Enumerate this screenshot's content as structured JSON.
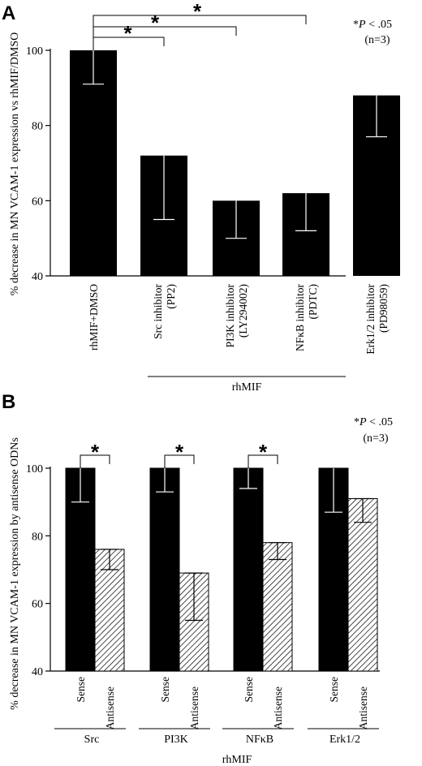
{
  "figure": {
    "colors": {
      "bar": "#000000",
      "hatch": "#000000",
      "background": "#ffffff"
    }
  },
  "chart_data": [
    {
      "type": "bar",
      "panel_label": "A",
      "ylabel": "% decrease in MN VCAM-1 expression vs rhMIF/DMSO",
      "ylim": [
        40,
        100
      ],
      "yticks": [
        "40",
        "60",
        "80",
        "100"
      ],
      "categories": [
        [
          "rhMIF+DMSO"
        ],
        [
          "Src inhibitor",
          "(PP2)"
        ],
        [
          "PI3K inhibitor",
          "(LY294002)"
        ],
        [
          "NFκB inhibitor",
          "(PDTC)"
        ],
        [
          "Erk1/2 inhibitor",
          "(PD98059)"
        ]
      ],
      "values": [
        100,
        72,
        60,
        62,
        88
      ],
      "error_low": [
        91,
        55,
        50,
        52,
        77
      ],
      "group_label": "rhMIF",
      "significance": {
        "marker": "*",
        "comparisons": [
          [
            0,
            1
          ],
          [
            0,
            2
          ],
          [
            0,
            3
          ]
        ]
      },
      "note": {
        "prefix": "*",
        "p_italic": "P",
        "text": " < .05",
        "n": "(n=3)"
      }
    },
    {
      "type": "bar",
      "panel_label": "B",
      "ylabel": "% decrease in MN VCAM-1 expression by antisense ODNs",
      "ylim": [
        40,
        100
      ],
      "yticks": [
        "40",
        "60",
        "80",
        "100"
      ],
      "groups": [
        "Src",
        "PI3K",
        "NFκB",
        "Erk1/2"
      ],
      "series": [
        {
          "name": "Sense",
          "values": [
            100,
            100,
            100,
            100
          ],
          "error_low": [
            90,
            93,
            94,
            87
          ],
          "fill": "solid"
        },
        {
          "name": "Antisense",
          "values": [
            76,
            69,
            78,
            91
          ],
          "error_low": [
            70,
            55,
            73,
            84
          ],
          "fill": "hatched"
        }
      ],
      "group_label": "rhMIF",
      "significance": {
        "marker": "*",
        "groups": [
          0,
          1,
          2
        ]
      },
      "note": {
        "prefix": "*",
        "p_italic": "P",
        "text": " < .05",
        "n": "(n=3)"
      }
    }
  ]
}
